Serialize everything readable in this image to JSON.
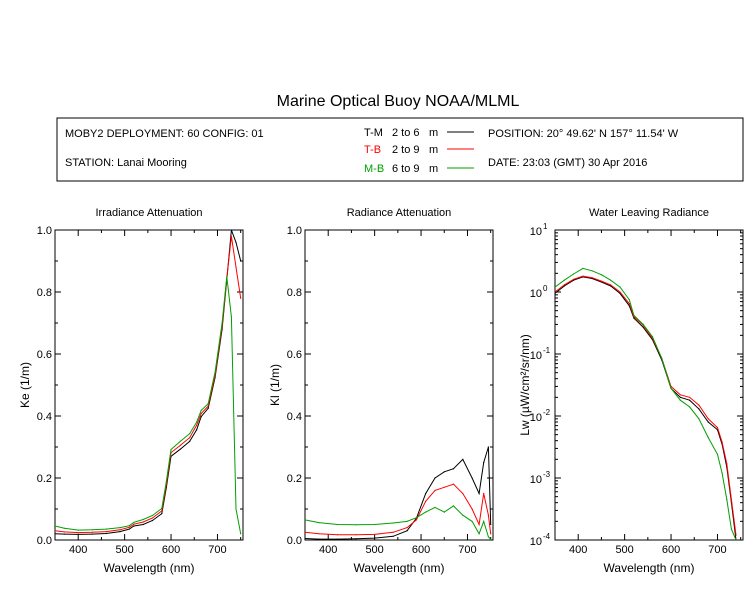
{
  "title": "Marine Optical Buoy NOAA/MLML",
  "info": {
    "deployment": "MOBY2 DEPLOYMENT: 60 CONFIG: 01",
    "station": "STATION: Lanai Mooring",
    "position": "POSITION: 20° 49.62' N   157° 11.54' W",
    "date": "DATE: 23:03 (GMT) 30 Apr 2016"
  },
  "legend": [
    {
      "code": "T-M",
      "range": "2 to 6",
      "unit": "m",
      "color": "#000000"
    },
    {
      "code": "T-B",
      "range": "2 to 9",
      "unit": "m",
      "color": "#ff0000"
    },
    {
      "code": "M-B",
      "range": "6 to 9",
      "unit": "m",
      "color": "#00a000"
    }
  ],
  "chart_data": [
    {
      "type": "line",
      "title": "Irradiance Attenuation",
      "xlabel": "Wavelength (nm)",
      "ylabel": "Ke  (1/m)",
      "xlim": [
        350,
        755
      ],
      "ylim": [
        0,
        1.0
      ],
      "xticks": [
        400,
        500,
        600,
        700
      ],
      "yticks": [
        0,
        0.2,
        0.4,
        0.6,
        0.8,
        1.0
      ],
      "yticklabels": [
        "0.0",
        "0.2",
        "0.4",
        "0.6",
        "0.8",
        "1.0"
      ],
      "x": [
        350,
        370,
        400,
        430,
        460,
        490,
        510,
        520,
        540,
        560,
        580,
        590,
        600,
        620,
        640,
        655,
        665,
        680,
        695,
        710,
        720,
        730,
        740,
        750
      ],
      "series": [
        {
          "name": "T-M",
          "color": "#000000",
          "values": [
            0.02,
            0.019,
            0.018,
            0.019,
            0.021,
            0.027,
            0.035,
            0.045,
            0.05,
            0.063,
            0.085,
            0.17,
            0.27,
            0.293,
            0.318,
            0.355,
            0.398,
            0.425,
            0.525,
            0.68,
            0.84,
            1.0,
            0.96,
            0.9
          ]
        },
        {
          "name": "T-B",
          "color": "#ff0000",
          "values": [
            0.03,
            0.026,
            0.024,
            0.025,
            0.027,
            0.033,
            0.041,
            0.051,
            0.058,
            0.071,
            0.094,
            0.18,
            0.282,
            0.305,
            0.33,
            0.37,
            0.408,
            0.432,
            0.532,
            0.69,
            0.845,
            0.98,
            0.88,
            0.78
          ]
        },
        {
          "name": "M-B",
          "color": "#00a000",
          "values": [
            0.045,
            0.038,
            0.032,
            0.033,
            0.035,
            0.04,
            0.046,
            0.057,
            0.066,
            0.079,
            0.102,
            0.19,
            0.292,
            0.318,
            0.343,
            0.38,
            0.418,
            0.44,
            0.542,
            0.7,
            0.85,
            0.72,
            0.1,
            0.02
          ]
        }
      ]
    },
    {
      "type": "line",
      "title": "Radiance Attenuation",
      "xlabel": "Wavelength (nm)",
      "ylabel": "Kl  (1/m)",
      "xlim": [
        350,
        755
      ],
      "ylim": [
        0,
        1.0
      ],
      "xticks": [
        400,
        500,
        600,
        700
      ],
      "yticks": [
        0,
        0.2,
        0.4,
        0.6,
        0.8,
        1.0
      ],
      "yticklabels": [
        "0.0",
        "0.2",
        "0.4",
        "0.6",
        "0.8",
        "1.0"
      ],
      "x": [
        350,
        380,
        420,
        460,
        500,
        540,
        570,
        590,
        610,
        630,
        650,
        670,
        690,
        710,
        725,
        735,
        745,
        750
      ],
      "series": [
        {
          "name": "T-M",
          "color": "#000000",
          "values": [
            0.005,
            0.003,
            0.003,
            0.004,
            0.006,
            0.012,
            0.03,
            0.07,
            0.15,
            0.2,
            0.22,
            0.23,
            0.26,
            0.2,
            0.15,
            0.25,
            0.3,
            0.05
          ]
        },
        {
          "name": "T-B",
          "color": "#ff0000",
          "values": [
            0.025,
            0.02,
            0.017,
            0.017,
            0.018,
            0.025,
            0.04,
            0.065,
            0.125,
            0.16,
            0.17,
            0.18,
            0.15,
            0.1,
            0.05,
            0.15,
            0.08,
            0.02
          ]
        },
        {
          "name": "M-B",
          "color": "#00a000",
          "values": [
            0.065,
            0.056,
            0.05,
            0.049,
            0.05,
            0.055,
            0.06,
            0.072,
            0.09,
            0.105,
            0.09,
            0.11,
            0.08,
            0.06,
            0.02,
            0.06,
            0.01,
            0.002
          ]
        }
      ]
    },
    {
      "type": "line",
      "title": "Water Leaving Radiance",
      "xlabel": "Wavelength (nm)",
      "ylabel": "Lw  (µW/cm²/sr/nm)",
      "yscale": "log",
      "xlim": [
        350,
        755
      ],
      "ylim": [
        0.0001,
        10
      ],
      "xticks": [
        400,
        500,
        600,
        700
      ],
      "yticks": [
        0.0001,
        0.001,
        0.01,
        0.1,
        1,
        10
      ],
      "ytick_exponents": [
        "-4",
        "-3",
        "-2",
        "-1",
        "0",
        "1"
      ],
      "ytick_base": "10",
      "x": [
        350,
        370,
        390,
        410,
        430,
        450,
        470,
        490,
        510,
        520,
        540,
        560,
        580,
        600,
        620,
        640,
        660,
        680,
        700,
        710,
        720,
        730,
        740
      ],
      "series": [
        {
          "name": "T-M",
          "color": "#000000",
          "values": [
            0.95,
            1.25,
            1.55,
            1.75,
            1.65,
            1.45,
            1.25,
            0.95,
            0.6,
            0.38,
            0.27,
            0.17,
            0.08,
            0.028,
            0.02,
            0.018,
            0.013,
            0.008,
            0.006,
            0.0035,
            0.0015,
            0.0004,
            0.0001
          ]
        },
        {
          "name": "T-B",
          "color": "#ff0000",
          "values": [
            1.0,
            1.3,
            1.6,
            1.8,
            1.7,
            1.5,
            1.3,
            1.0,
            0.65,
            0.4,
            0.29,
            0.18,
            0.085,
            0.03,
            0.022,
            0.02,
            0.015,
            0.009,
            0.0065,
            0.0038,
            0.0017,
            0.00045,
            0.00012
          ]
        },
        {
          "name": "M-B",
          "color": "#00a000",
          "values": [
            1.2,
            1.55,
            1.95,
            2.4,
            2.2,
            1.9,
            1.55,
            1.2,
            0.75,
            0.42,
            0.3,
            0.19,
            0.085,
            0.028,
            0.018,
            0.014,
            0.009,
            0.0045,
            0.0024,
            0.0012,
            0.00045,
            0.00015,
            0.0001
          ]
        }
      ]
    }
  ]
}
